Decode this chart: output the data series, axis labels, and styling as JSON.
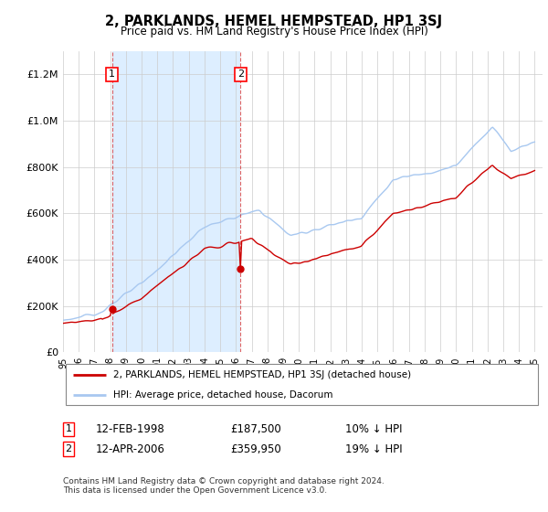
{
  "title": "2, PARKLANDS, HEMEL HEMPSTEAD, HP1 3SJ",
  "subtitle": "Price paid vs. HM Land Registry's House Price Index (HPI)",
  "legend_entry1": "2, PARKLANDS, HEMEL HEMPSTEAD, HP1 3SJ (detached house)",
  "legend_entry2": "HPI: Average price, detached house, Dacorum",
  "sale1_date": "12-FEB-1998",
  "sale1_price": 187500,
  "sale1_hpi": "10% ↓ HPI",
  "sale1_year": 1998.12,
  "sale2_date": "12-APR-2006",
  "sale2_price": 359950,
  "sale2_hpi": "19% ↓ HPI",
  "sale2_year": 2006.29,
  "footer": "Contains HM Land Registry data © Crown copyright and database right 2024.\nThis data is licensed under the Open Government Licence v3.0.",
  "hpi_color": "#a8c8f0",
  "price_color": "#cc0000",
  "shade_color": "#ddeeff",
  "background_color": "#ffffff",
  "ylim": [
    0,
    1300000
  ],
  "yticks": [
    0,
    200000,
    400000,
    600000,
    800000,
    1000000,
    1200000
  ]
}
